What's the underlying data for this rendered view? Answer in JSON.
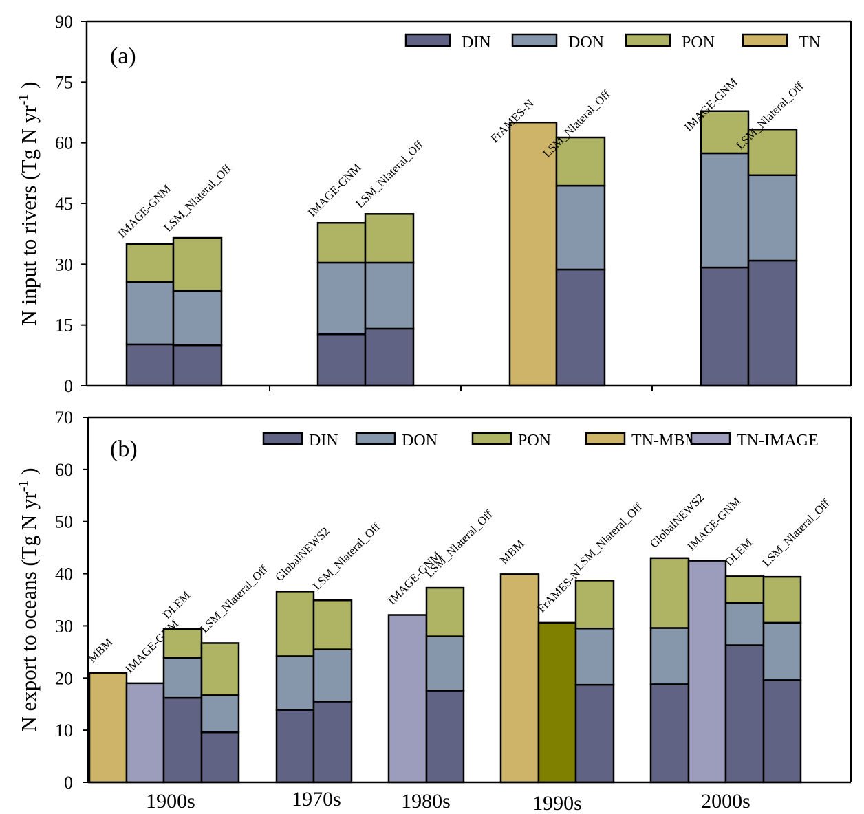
{
  "chart_data": [
    {
      "type": "bar",
      "stacked": true,
      "panel_label": "(a)",
      "ylabel": "N input to rivers (Tg N yr",
      "ylabel_sup": "-1",
      "ylabel_close": ")",
      "ylim": [
        0,
        90
      ],
      "yticks": [
        0,
        15,
        30,
        45,
        60,
        75,
        90
      ],
      "grid": false,
      "legend_position": "top-right",
      "legend": [
        {
          "name": "DIN",
          "color": "#606384"
        },
        {
          "name": "DON",
          "color": "#8696ab"
        },
        {
          "name": "PON",
          "color": "#aeb464"
        },
        {
          "name": "TN",
          "color": "#cdb468"
        }
      ],
      "groups": [
        {
          "category": "1900s",
          "bars": [
            {
              "model": "IMAGE-GNM",
              "DIN": 10.2,
              "DON": 15.4,
              "PON": 9.4
            },
            {
              "model": "LSM_Nlateral_Off",
              "DIN": 10.0,
              "DON": 13.4,
              "PON": 13.1
            }
          ]
        },
        {
          "category": "1970s",
          "bars": [
            {
              "model": "IMAGE-GNM",
              "DIN": 12.7,
              "DON": 17.7,
              "PON": 9.8
            },
            {
              "model": "LSM_Nlateral_Off",
              "DIN": 14.1,
              "DON": 16.3,
              "PON": 12.0
            }
          ]
        },
        {
          "category": "1990s",
          "bars": [
            {
              "model": "FrAMES-N",
              "TN": 65.0
            },
            {
              "model": "LSM_Nlateral_Off",
              "DIN": 28.7,
              "DON": 20.7,
              "PON": 11.9
            }
          ]
        },
        {
          "category": "2000s",
          "bars": [
            {
              "model": "IMAGE-GNM",
              "DIN": 29.2,
              "DON": 28.2,
              "PON": 10.4
            },
            {
              "model": "LSM_Nlateral_Off",
              "DIN": 30.9,
              "DON": 21.1,
              "PON": 11.3
            }
          ]
        }
      ]
    },
    {
      "type": "bar",
      "stacked": true,
      "panel_label": "(b)",
      "ylabel": "N export to oceans (Tg N yr",
      "ylabel_sup": "-1",
      "ylabel_close": ")",
      "ylim": [
        0,
        70
      ],
      "yticks": [
        0,
        10,
        20,
        30,
        40,
        50,
        60,
        70
      ],
      "grid": false,
      "legend_position": "top-right",
      "categories": [
        "1900s",
        "1970s",
        "1980s",
        "1990s",
        "2000s"
      ],
      "legend": [
        {
          "name": "DIN",
          "color": "#606384"
        },
        {
          "name": "DON",
          "color": "#8696ab"
        },
        {
          "name": "PON",
          "color": "#aeb464"
        },
        {
          "name": "TN-MBM",
          "color": "#cdb468"
        },
        {
          "name": "TN-IMAGE",
          "color": "#9c9cbd"
        }
      ],
      "extra_colors": {
        "TN-FrAMES": "#808000"
      },
      "groups": [
        {
          "category": "1900s",
          "bars": [
            {
              "model": "MBM",
              "TN-MBM": 21.0
            },
            {
              "model": "IMAGE-GNM",
              "TN-IMAGE": 19.0
            },
            {
              "model": "DLEM",
              "DIN": 16.2,
              "DON": 7.7,
              "PON": 5.5
            },
            {
              "model": "LSM_Nlateral_Off",
              "DIN": 9.6,
              "DON": 7.1,
              "PON": 10.0
            }
          ]
        },
        {
          "category": "1970s",
          "bars": [
            {
              "model": "GlobalNEWS2",
              "DIN": 13.9,
              "DON": 10.3,
              "PON": 12.4
            },
            {
              "model": "LSM_Nlateral_Off",
              "DIN": 15.5,
              "DON": 10.0,
              "PON": 9.4
            }
          ]
        },
        {
          "category": "1980s",
          "bars": [
            {
              "model": "IMAGE-GNM",
              "TN-IMAGE": 32.1
            },
            {
              "model": "LSM_Nlateral_Off",
              "DIN": 17.6,
              "DON": 10.4,
              "PON": 9.3
            }
          ]
        },
        {
          "category": "1990s",
          "bars": [
            {
              "model": "MBM",
              "TN-MBM": 39.9
            },
            {
              "model": "FrAMES-N",
              "TN-FrAMES": 30.6
            },
            {
              "model": "LSM_Nlateral_Off",
              "DIN": 18.7,
              "DON": 10.8,
              "PON": 9.2
            }
          ]
        },
        {
          "category": "2000s",
          "bars": [
            {
              "model": "GlobalNEWS2",
              "DIN": 18.8,
              "DON": 10.8,
              "PON": 13.4
            },
            {
              "model": "IMAGE-GNM",
              "TN-IMAGE": 42.5
            },
            {
              "model": "DLEM",
              "DIN": 26.3,
              "DON": 8.1,
              "PON": 5.1
            },
            {
              "model": "LSM_Nlateral_Off",
              "DIN": 19.6,
              "DON": 11.0,
              "PON": 8.8
            }
          ]
        }
      ]
    }
  ]
}
